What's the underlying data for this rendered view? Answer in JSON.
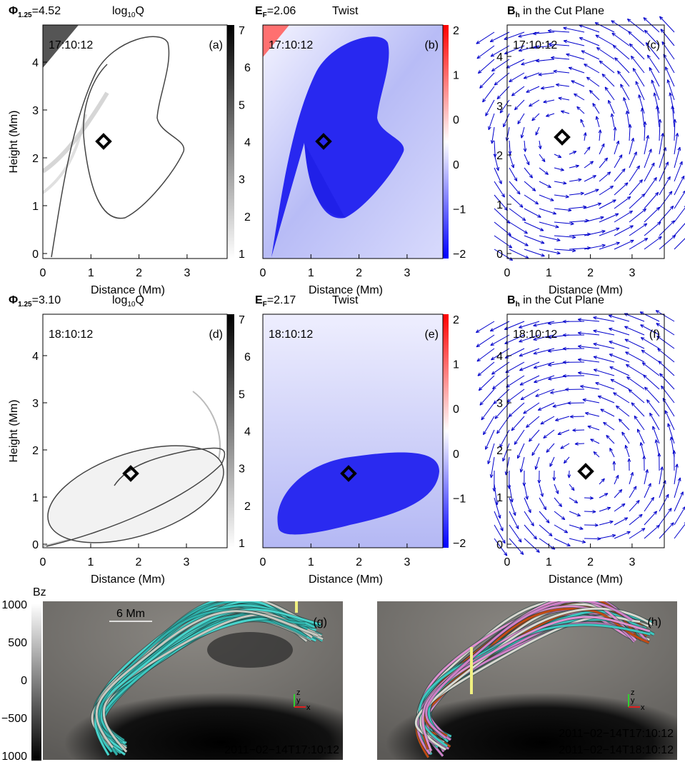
{
  "panels": [
    {
      "title": {
        "main": "Φ",
        "sub": "1.25",
        "rest": "=4.52"
      },
      "quantity": {
        "main": "log",
        "sub": "10",
        "rest": "Q"
      },
      "time": "17:10:12",
      "label": "(a)",
      "xlabel": "Distance (Mm)",
      "ylabel": "Height (Mm)",
      "xticks": [
        "0",
        "1",
        "2",
        "3"
      ],
      "yticks": [
        "0",
        "1",
        "2",
        "3",
        "4"
      ],
      "colorbar_ticks": [
        "7",
        "6",
        "5",
        "4",
        "3",
        "2",
        "1"
      ]
    },
    {
      "title": {
        "main": "E",
        "sub": "F",
        "rest": "=2.06"
      },
      "quantity": {
        "main": "Twist"
      },
      "time": "17:10:12",
      "label": "(b)",
      "xlabel": "Distance (Mm)",
      "xticks": [
        "0",
        "1",
        "2",
        "3"
      ],
      "colorbar_ticks": [
        "2",
        "1",
        "0",
        "0",
        "−1",
        "−2"
      ]
    },
    {
      "title": {
        "main": "B",
        "sub": "h",
        "rest": " in the Cut Plane"
      },
      "time": "17:10:12",
      "label": "(c)",
      "xlabel": "Distance (Mm)",
      "xticks": [
        "0",
        "1",
        "2",
        "3"
      ],
      "yticks": [
        "0",
        "1",
        "2",
        "3",
        "4"
      ]
    },
    {
      "title": {
        "main": "Φ",
        "sub": "1.25",
        "rest": "=3.10"
      },
      "quantity": {
        "main": "log",
        "sub": "10",
        "rest": "Q"
      },
      "time": "18:10:12",
      "label": "(d)",
      "xlabel": "Distance (Mm)",
      "ylabel": "Height (Mm)",
      "xticks": [
        "0",
        "1",
        "2",
        "3"
      ],
      "yticks": [
        "0",
        "1",
        "2",
        "3",
        "4"
      ],
      "colorbar_ticks": [
        "7",
        "6",
        "5",
        "4",
        "3",
        "2",
        "1"
      ]
    },
    {
      "title": {
        "main": "E",
        "sub": "F",
        "rest": "=2.17"
      },
      "quantity": {
        "main": "Twist"
      },
      "time": "18:10:12",
      "label": "(e)",
      "xlabel": "Distance (Mm)",
      "xticks": [
        "0",
        "1",
        "2",
        "3"
      ],
      "colorbar_ticks": [
        "2",
        "1",
        "0",
        "0",
        "−1",
        "−2"
      ]
    },
    {
      "title": {
        "main": "B",
        "sub": "h",
        "rest": " in the Cut Plane"
      },
      "time": "18:10:12",
      "label": "(f)",
      "xlabel": "Distance (Mm)",
      "xticks": [
        "0",
        "1",
        "2",
        "3"
      ],
      "yticks": [
        "0",
        "1",
        "2",
        "3",
        "4"
      ]
    }
  ],
  "bottom": {
    "colorbar_label": "Bz",
    "colorbar_ticks": [
      "1000",
      "500",
      "0",
      "−500",
      "1000"
    ],
    "left": {
      "scale": "6 Mm",
      "label": "(g)",
      "axes": [
        "z",
        "y",
        "x"
      ],
      "times": [
        "2011−02−14T17:10:12"
      ]
    },
    "right": {
      "label": "(h)",
      "axes": [
        "z",
        "y",
        "x"
      ],
      "times": [
        "2011−02−14T17:10:12",
        "2011−02−14T18:10:12"
      ]
    }
  }
}
